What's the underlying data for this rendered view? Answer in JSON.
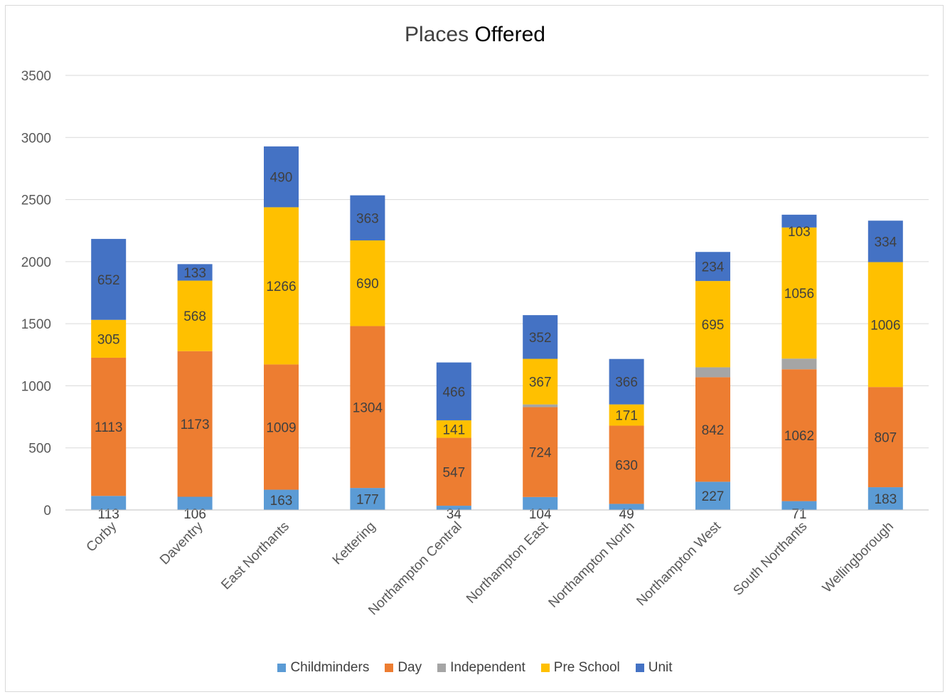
{
  "chart_data": {
    "type": "bar",
    "stacked": true,
    "title_part1": "Places",
    "title_part2": "Offered",
    "xlabel": "",
    "ylabel": "",
    "ylim": [
      0,
      3500
    ],
    "yticks": [
      0,
      500,
      1000,
      1500,
      2000,
      2500,
      3000,
      3500
    ],
    "grid": true,
    "legend_position": "bottom",
    "categories": [
      "Corby",
      "Daventry",
      "East Northants",
      "Kettering",
      "Northampton Central",
      "Northampton East",
      "Northampton North",
      "Northampton West",
      "South Northants",
      "Wellingborough"
    ],
    "series": [
      {
        "name": "Childminders",
        "color": "#5b9bd5",
        "values": [
          113,
          106,
          163,
          177,
          34,
          104,
          49,
          227,
          71,
          183
        ],
        "labels": [
          "113",
          "106",
          "163",
          "177",
          "34",
          "104",
          "49",
          "227",
          "71",
          "183"
        ]
      },
      {
        "name": "Day",
        "color": "#ed7d31",
        "values": [
          1113,
          1173,
          1009,
          1304,
          547,
          724,
          630,
          842,
          1062,
          807
        ],
        "labels": [
          "1113",
          "1173",
          "1009",
          "1304",
          "547",
          "724",
          "630",
          "842",
          "1062",
          "807"
        ]
      },
      {
        "name": "Independent",
        "color": "#a5a5a5",
        "values": [
          0,
          0,
          0,
          0,
          0,
          22,
          0,
          80,
          86,
          0
        ],
        "labels": [
          "",
          "",
          "",
          "",
          "",
          "",
          "",
          "",
          "",
          ""
        ]
      },
      {
        "name": "Pre School",
        "color": "#ffc000",
        "values": [
          305,
          568,
          1266,
          690,
          141,
          367,
          171,
          695,
          1056,
          1006
        ],
        "labels": [
          "305",
          "568",
          "1266",
          "690",
          "141",
          "367",
          "171",
          "695",
          "1056",
          "1006"
        ]
      },
      {
        "name": "Unit",
        "color": "#4472c4",
        "values": [
          652,
          133,
          490,
          363,
          466,
          352,
          366,
          234,
          103,
          334
        ],
        "labels": [
          "652",
          "133",
          "490",
          "363",
          "466",
          "352",
          "366",
          "234",
          "103",
          "334"
        ]
      }
    ]
  }
}
